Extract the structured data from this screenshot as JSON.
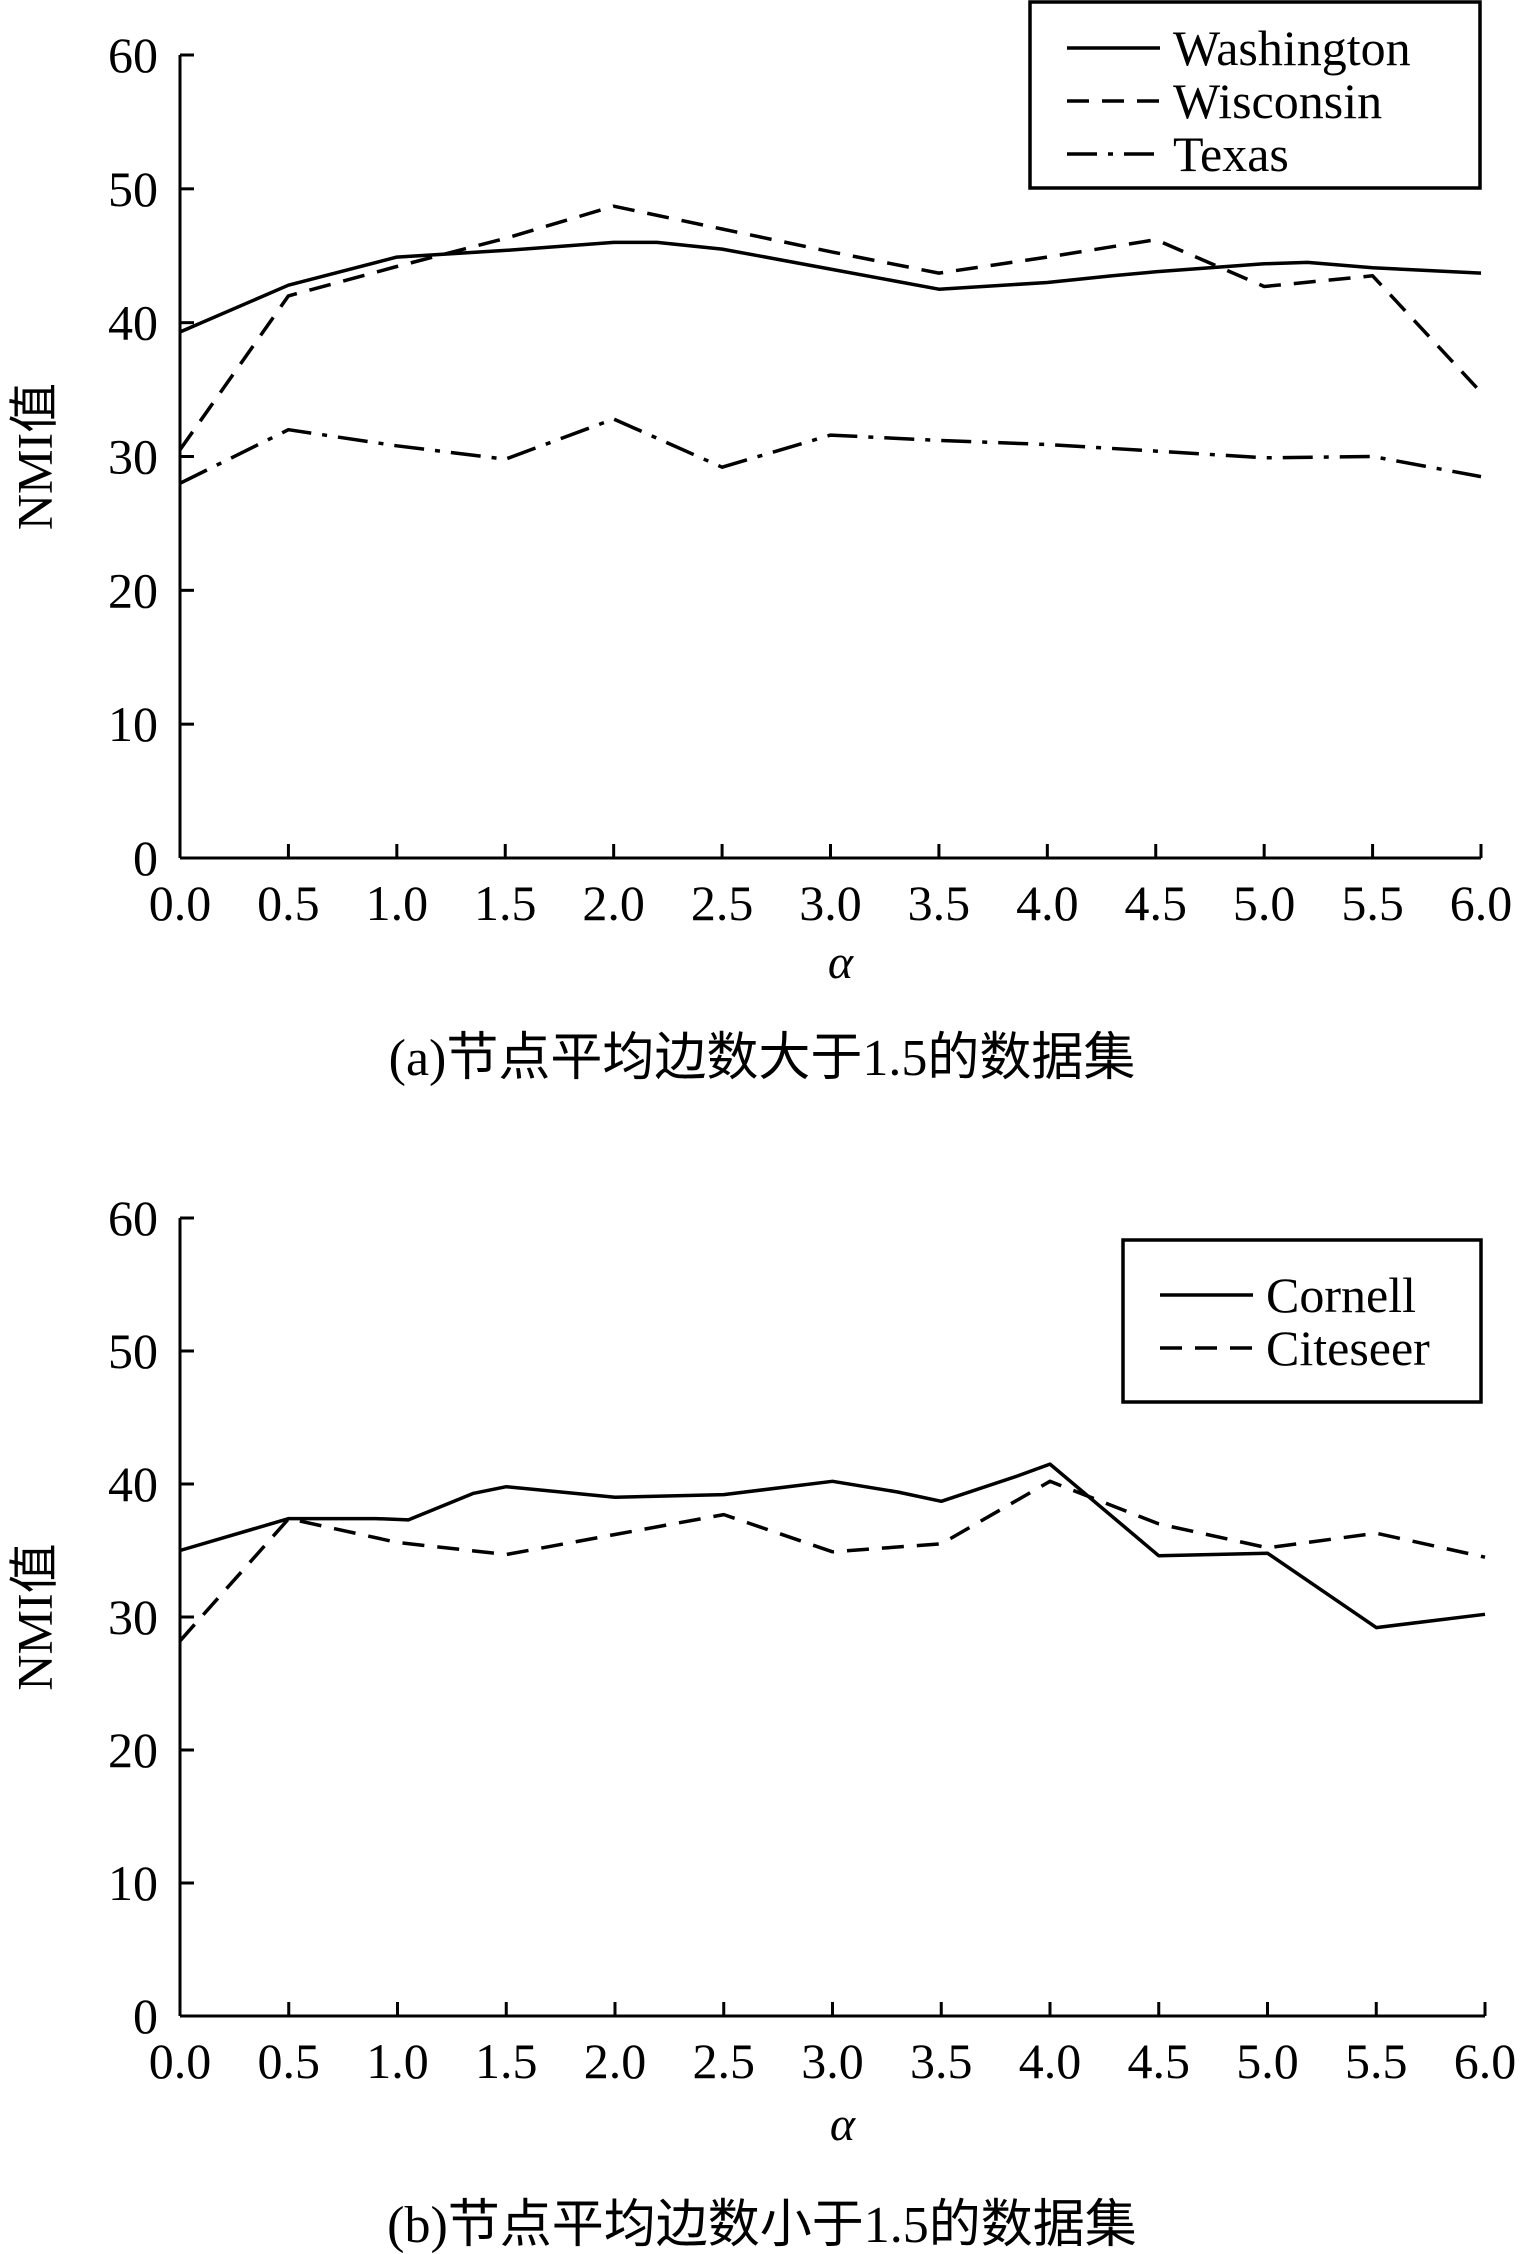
{
  "chart_data": [
    {
      "type": "line",
      "caption": "(a)节点平均边数大于1.5的数据集",
      "xlabel": "α",
      "ylabel": "NMI值",
      "xlim": [
        0,
        6
      ],
      "ylim": [
        0,
        60
      ],
      "xticks": [
        "0.0",
        "0.5",
        "1.0",
        "1.5",
        "2.0",
        "2.5",
        "3.0",
        "3.5",
        "4.0",
        "4.5",
        "5.0",
        "5.5",
        "6.0"
      ],
      "yticks": [
        "0",
        "10",
        "20",
        "30",
        "40",
        "50",
        "60"
      ],
      "grid": false,
      "legend_position": "top-right",
      "series": [
        {
          "name": "Washington",
          "style": "solid",
          "x": [
            0.0,
            0.5,
            1.0,
            1.5,
            2.0,
            2.2,
            2.5,
            3.0,
            3.5,
            4.0,
            4.3,
            4.5,
            5.0,
            5.2,
            5.5,
            6.0
          ],
          "y": [
            39.3,
            42.8,
            44.9,
            45.4,
            46.0,
            46.0,
            45.5,
            44.0,
            42.5,
            43.0,
            43.5,
            43.8,
            44.4,
            44.5,
            44.1,
            43.7
          ]
        },
        {
          "name": "Wisconsin",
          "style": "dashed",
          "x": [
            0.0,
            0.5,
            1.0,
            1.5,
            2.0,
            2.5,
            3.0,
            3.5,
            4.0,
            4.5,
            5.0,
            5.5,
            6.0
          ],
          "y": [
            30.5,
            42.0,
            44.2,
            46.3,
            48.7,
            47.0,
            45.3,
            43.7,
            44.9,
            46.2,
            42.7,
            43.5,
            34.8
          ]
        },
        {
          "name": "Texas",
          "style": "dash-dot",
          "x": [
            0.0,
            0.5,
            1.0,
            1.5,
            2.0,
            2.5,
            3.0,
            3.5,
            4.0,
            4.5,
            5.0,
            5.5,
            6.0
          ],
          "y": [
            28.0,
            32.0,
            30.8,
            29.8,
            32.8,
            29.2,
            31.6,
            31.2,
            30.9,
            30.4,
            29.9,
            30.0,
            28.5
          ]
        }
      ]
    },
    {
      "type": "line",
      "caption": "(b)节点平均边数小于1.5的数据集",
      "xlabel": "α",
      "ylabel": "NMI值",
      "xlim": [
        0,
        6
      ],
      "ylim": [
        0,
        60
      ],
      "xticks": [
        "0.0",
        "0.5",
        "1.0",
        "1.5",
        "2.0",
        "2.5",
        "3.0",
        "3.5",
        "4.0",
        "4.5",
        "5.0",
        "5.5",
        "6.0"
      ],
      "yticks": [
        "0",
        "10",
        "20",
        "30",
        "40",
        "50",
        "60"
      ],
      "grid": false,
      "legend_position": "top-right",
      "series": [
        {
          "name": "Cornell",
          "style": "solid",
          "x": [
            0.0,
            0.5,
            0.9,
            1.05,
            1.35,
            1.5,
            2.0,
            2.5,
            3.0,
            3.3,
            3.5,
            3.85,
            4.0,
            4.5,
            5.0,
            5.5,
            6.0
          ],
          "y": [
            35.0,
            37.4,
            37.4,
            37.3,
            39.3,
            39.8,
            39.0,
            39.2,
            40.2,
            39.4,
            38.7,
            40.6,
            41.5,
            34.6,
            34.8,
            29.2,
            30.2
          ]
        },
        {
          "name": "Citeseer",
          "style": "dashed",
          "x": [
            0.0,
            0.5,
            1.0,
            1.5,
            2.0,
            2.5,
            3.0,
            3.5,
            4.0,
            4.5,
            5.0,
            5.5,
            6.0
          ],
          "y": [
            28.2,
            37.4,
            35.6,
            34.7,
            36.2,
            37.7,
            34.9,
            35.5,
            40.2,
            37.0,
            35.2,
            36.3,
            34.5
          ]
        }
      ]
    }
  ]
}
